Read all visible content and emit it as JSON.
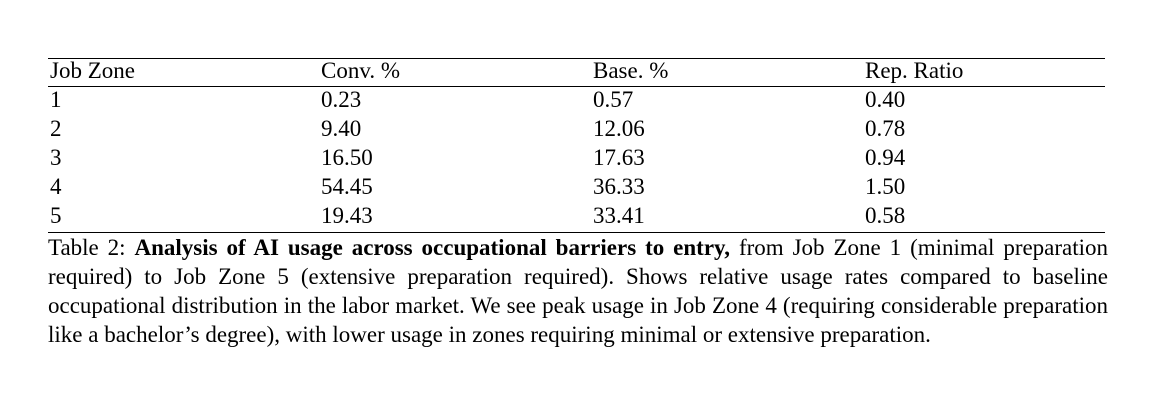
{
  "table": {
    "headers": [
      "Job Zone",
      "Conv. %",
      "Base. %",
      "Rep. Ratio"
    ],
    "rows": [
      [
        "1",
        "0.23",
        "0.57",
        "0.40"
      ],
      [
        "2",
        "9.40",
        "12.06",
        "0.78"
      ],
      [
        "3",
        "16.50",
        "17.63",
        "0.94"
      ],
      [
        "4",
        "54.45",
        "36.33",
        "1.50"
      ],
      [
        "5",
        "19.43",
        "33.41",
        "0.58"
      ]
    ]
  },
  "caption": {
    "label": "Table 2:",
    "bold_title": "Analysis of AI usage across occupational barriers to entry,",
    "body": "from Job Zone 1 (minimal preparation required) to Job Zone 5 (extensive preparation required). Shows relative usage rates compared to baseline occupational distribution in the labor market. We see peak usage in Job Zone 4 (requiring considerable preparation like a bachelor’s degree), with lower usage in zones requiring minimal or extensive preparation."
  }
}
